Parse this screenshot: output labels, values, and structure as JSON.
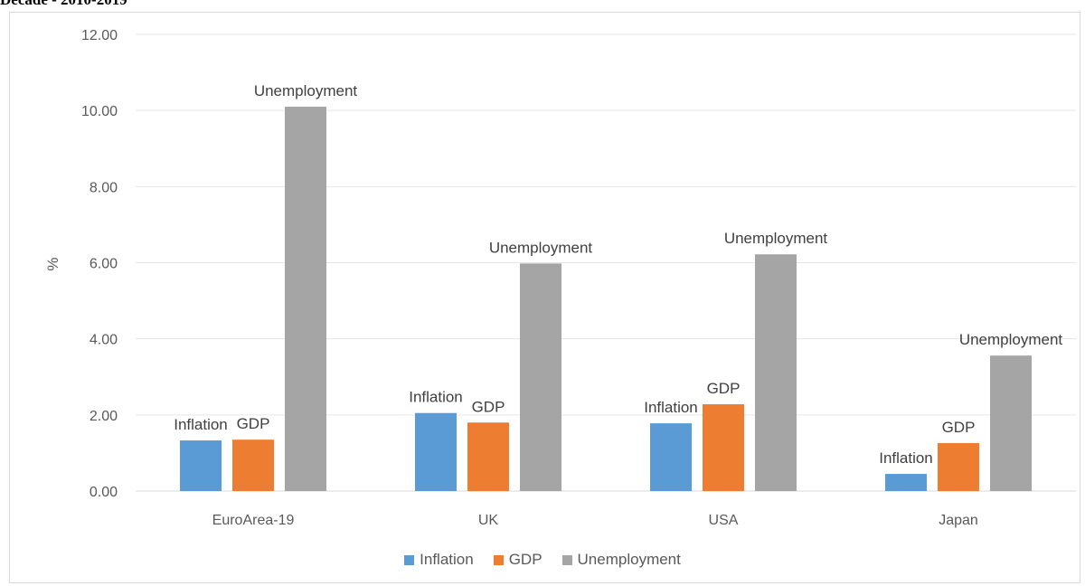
{
  "page_title": "Decade - 2010-2019",
  "chart_data": {
    "type": "bar",
    "title": "",
    "xlabel": "",
    "ylabel": "%",
    "ylim": [
      0,
      12
    ],
    "yticks": [
      "0.00",
      "2.00",
      "4.00",
      "6.00",
      "8.00",
      "10.00",
      "12.00"
    ],
    "categories": [
      "EuroArea-19",
      "UK",
      "USA",
      "Japan"
    ],
    "series": [
      {
        "name": "Inflation",
        "color": "#5b9bd5",
        "values": [
          1.33,
          2.05,
          1.78,
          0.45
        ]
      },
      {
        "name": "GDP",
        "color": "#ed7d31",
        "values": [
          1.35,
          1.8,
          2.28,
          1.26
        ]
      },
      {
        "name": "Unemployment",
        "color": "#a5a5a5",
        "values": [
          10.1,
          5.98,
          6.22,
          3.56
        ]
      }
    ],
    "grid": true,
    "legend_position": "bottom"
  }
}
